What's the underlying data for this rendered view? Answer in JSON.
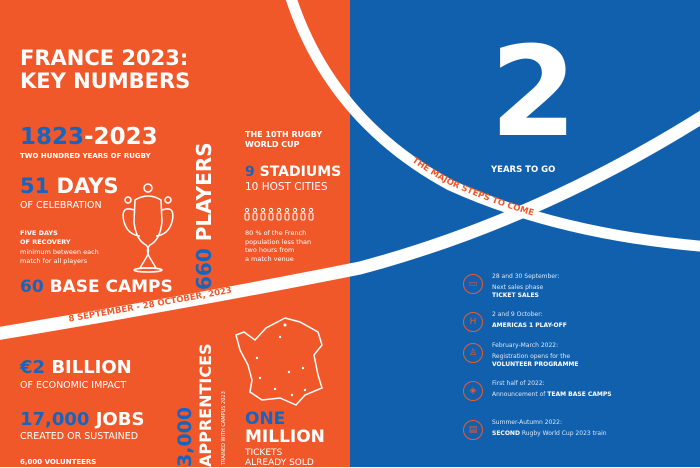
{
  "colors": {
    "orange": "#F0582A",
    "blue": "#1160AD",
    "accent_blue": "#1565C0"
  },
  "left": {
    "title_line1": "FRANCE 2023:",
    "title_line2": "KEY NUMBERS",
    "years_a": "1823",
    "years_b": "-2023",
    "years_caption": "TWO HUNDRED YEARS OF RUGBY",
    "days_num": "51",
    "days_word": " DAYS",
    "days_caption": "OF CELEBRATION",
    "recovery_l1": "FIVE DAYS",
    "recovery_l2": "OF RECOVERY",
    "recovery_d1": "minimum between each",
    "recovery_d2": "match for all players",
    "camps_num": "60",
    "camps_word": " BASE CAMPS",
    "players_num": "660",
    "players_word": " PLAYERS",
    "wc_l1": "THE 10TH RUGBY",
    "wc_l2": "WORLD CUP",
    "stadiums_num": "9",
    "stadiums_word": " STADIUMS",
    "host_cities": "10 HOST CITIES",
    "pop_l1": "80 % of the French",
    "pop_l2": "population less than",
    "pop_l3": "two hours from",
    "pop_l4": "a match venue",
    "dates_band": "8 SEPTEMBER - 28 OCTOBER, 2023",
    "billion_num": "€2",
    "billion_word": " BILLION",
    "billion_caption": "OF ECONOMIC IMPACT",
    "jobs_num": "17,000",
    "jobs_word": " JOBS",
    "jobs_caption": "CREATED OR SUSTAINED",
    "volunteers": "6,000 VOLUNTEERS",
    "apprentices_num": "3,000",
    "apprentices_word": " APPRENTICES",
    "apprentices_caption": "TRAINED WITH CAMPUS 2023",
    "tickets_l1": "ONE",
    "tickets_l2": "MILLION",
    "tickets_l3": "TICKETS",
    "tickets_l4": "ALREADY SOLD"
  },
  "right": {
    "big_number": "2",
    "years_to_go": "YEARS TO GO",
    "steps_band": "THE MAJOR STEPS TO COME",
    "timeline": [
      {
        "icon": "tickets-icon",
        "date": "28 and 30 September:",
        "text": "Next sales phase",
        "bold": "TICKET SALES"
      },
      {
        "icon": "rugby-posts-icon",
        "date": "2 and 9 October:",
        "text": "",
        "bold": "AMERICAS 1 PLAY-OFF"
      },
      {
        "icon": "volunteer-icon",
        "date": "February-March 2022:",
        "text": "Registration opens for the",
        "bold": "VOLUNTEER PROGRAMME"
      },
      {
        "icon": "location-pin-icon",
        "date": "First half of 2022:",
        "text": "Announcement of ",
        "bold": "TEAM BASE CAMPS"
      },
      {
        "icon": "train-icon",
        "date": "Summer-Autumn 2022:",
        "bold": "SECOND",
        "text": " Rugby World Cup 2023 train"
      }
    ]
  }
}
